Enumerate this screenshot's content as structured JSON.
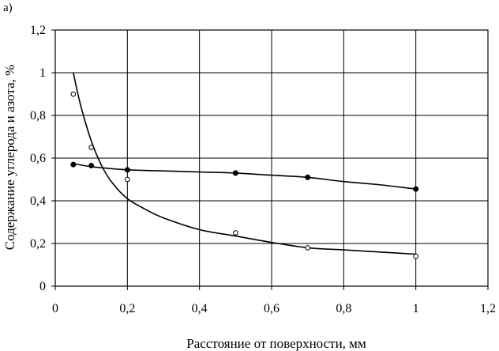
{
  "panel_label": "а)",
  "chart_data": {
    "type": "scatter",
    "xlabel": "Расстояние от  поверхности, мм",
    "ylabel": "Содержание углерода и азота, %",
    "xlim": [
      0,
      1.2
    ],
    "ylim": [
      0,
      1.2
    ],
    "x_ticks": [
      "0",
      "0,2",
      "0,4",
      "0,6",
      "0,8",
      "1",
      "1,2"
    ],
    "y_ticks": [
      "0",
      "0,2",
      "0,4",
      "0,6",
      "0,8",
      "1",
      "1,2"
    ],
    "grid": true,
    "legend": "none",
    "series": [
      {
        "marker": "filled-circle",
        "points": [
          [
            0.05,
            0.57
          ],
          [
            0.1,
            0.565
          ],
          [
            0.2,
            0.545
          ],
          [
            0.5,
            0.53
          ],
          [
            0.7,
            0.51
          ],
          [
            1.0,
            0.455
          ]
        ],
        "trend": [
          [
            0.05,
            0.575
          ],
          [
            0.1,
            0.56
          ],
          [
            0.2,
            0.545
          ],
          [
            0.3,
            0.54
          ],
          [
            0.4,
            0.535
          ],
          [
            0.5,
            0.53
          ],
          [
            0.6,
            0.52
          ],
          [
            0.7,
            0.51
          ],
          [
            0.8,
            0.49
          ],
          [
            0.9,
            0.475
          ],
          [
            1.0,
            0.455
          ]
        ]
      },
      {
        "marker": "open-circle",
        "points": [
          [
            0.05,
            0.9
          ],
          [
            0.1,
            0.65
          ],
          [
            0.2,
            0.5
          ],
          [
            0.5,
            0.25
          ],
          [
            0.7,
            0.18
          ],
          [
            1.0,
            0.14
          ]
        ],
        "trend": [
          [
            0.05,
            1.0
          ],
          [
            0.07,
            0.85
          ],
          [
            0.1,
            0.68
          ],
          [
            0.13,
            0.56
          ],
          [
            0.16,
            0.48
          ],
          [
            0.2,
            0.41
          ],
          [
            0.25,
            0.36
          ],
          [
            0.3,
            0.32
          ],
          [
            0.4,
            0.265
          ],
          [
            0.5,
            0.235
          ],
          [
            0.6,
            0.205
          ],
          [
            0.7,
            0.18
          ],
          [
            0.8,
            0.17
          ],
          [
            0.9,
            0.16
          ],
          [
            1.0,
            0.15
          ]
        ]
      }
    ]
  }
}
